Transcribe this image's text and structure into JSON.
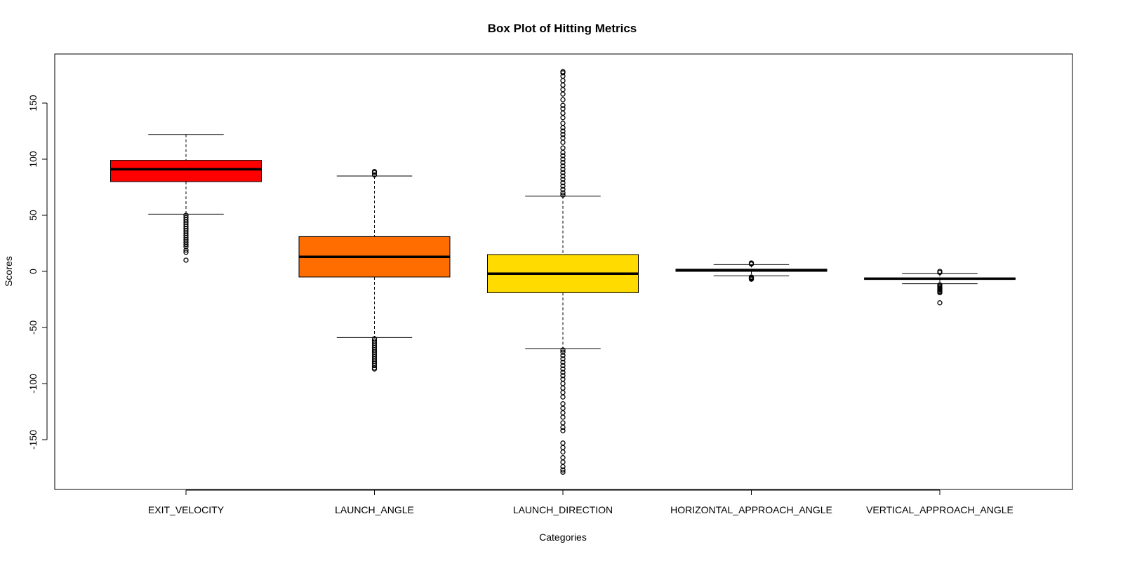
{
  "chart_data": {
    "type": "box",
    "title": "Box Plot of Hitting Metrics",
    "xlabel": "Categories",
    "ylabel": "Scores",
    "ylim": [
      -190,
      195
    ],
    "yticks": [
      -150,
      -100,
      -50,
      0,
      50,
      100,
      150
    ],
    "grid": false,
    "categories": [
      "EXIT_VELOCITY",
      "LAUNCH_ANGLE",
      "LAUNCH_DIRECTION",
      "HORIZONTAL_APPROACH_ANGLE",
      "VERTICAL_APPROACH_ANGLE"
    ],
    "series": [
      {
        "category": "EXIT_VELOCITY",
        "color": "#ff0000",
        "whisker_low": 51,
        "q1": 80,
        "median": 91,
        "q3": 99,
        "whisker_high": 122,
        "outliers": [
          50,
          48,
          46,
          44,
          42,
          40,
          38,
          36,
          34,
          32,
          30,
          28,
          26,
          24,
          22,
          19,
          17,
          10
        ]
      },
      {
        "category": "LAUNCH_ANGLE",
        "color": "#ff6d00",
        "whisker_low": -59,
        "q1": -5,
        "median": 13,
        "q3": 31,
        "whisker_high": 85,
        "outliers": [
          86,
          88,
          89,
          -60,
          -62,
          -64,
          -66,
          -68,
          -70,
          -72,
          -74,
          -76,
          -78,
          -80,
          -82,
          -84,
          -86,
          -87
        ]
      },
      {
        "category": "LAUNCH_DIRECTION",
        "color": "#ffdb00",
        "whisker_low": -69,
        "q1": -19,
        "median": -2,
        "q3": 15,
        "whisker_high": 67,
        "outliers": [
          68,
          70,
          73,
          76,
          79,
          82,
          85,
          88,
          91,
          94,
          97,
          100,
          103,
          106,
          110,
          115,
          119,
          122,
          125,
          128,
          132,
          137,
          141,
          145,
          148,
          153,
          158,
          162,
          166,
          170,
          174,
          177,
          178,
          -70,
          -72,
          -75,
          -78,
          -81,
          -84,
          -87,
          -90,
          -93,
          -96,
          -100,
          -104,
          -108,
          -112,
          -118,
          -122,
          -126,
          -130,
          -135,
          -139,
          -142,
          -153,
          -157,
          -161,
          -166,
          -170,
          -174,
          -177,
          -179
        ]
      },
      {
        "category": "HORIZONTAL_APPROACH_ANGLE",
        "color": "#000000",
        "whisker_low": -4,
        "q1": 0,
        "median": 1,
        "q3": 2,
        "whisker_high": 6,
        "outliers": [
          6.5,
          7,
          7.5,
          -5,
          -5.5,
          -6,
          -6.5,
          -7
        ]
      },
      {
        "category": "VERTICAL_APPROACH_ANGLE",
        "color": "#000000",
        "whisker_low": -11,
        "q1": -7,
        "median": -6.5,
        "q3": -6,
        "whisker_high": -2,
        "outliers": [
          -1,
          0,
          -12,
          -13,
          -14,
          -15,
          -16,
          -17,
          -18,
          -19,
          -28
        ]
      }
    ]
  }
}
